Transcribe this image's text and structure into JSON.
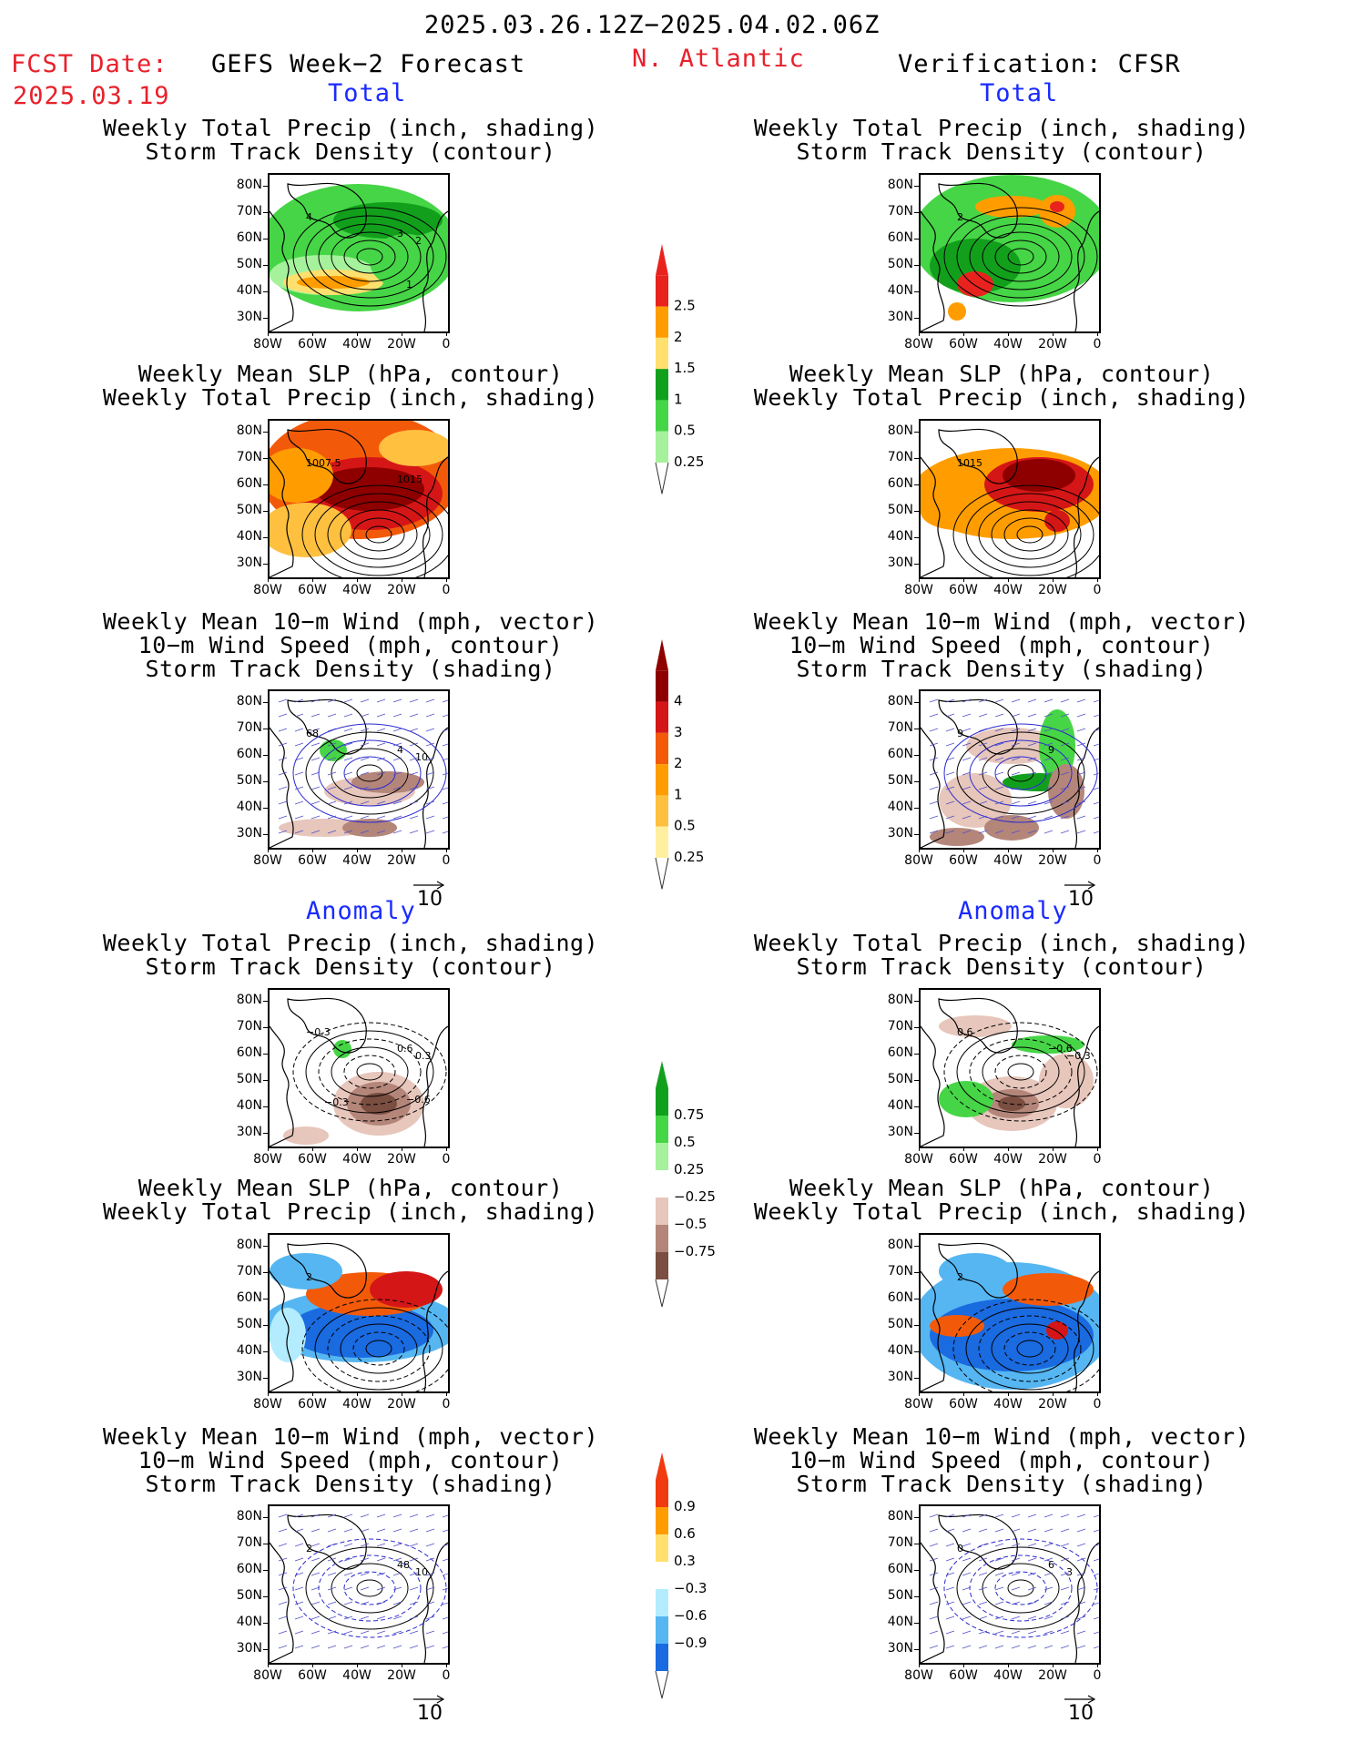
{
  "header": {
    "date_range": "2025.03.26.12Z−2025.04.02.06Z",
    "fcst_label": "FCST Date:",
    "fcst_date": "2025.03.19",
    "left_title": "GEFS Week−2 Forecast",
    "region": "N. Atlantic",
    "right_title": "Verification: CFSR"
  },
  "sections": {
    "total": "Total",
    "anomaly": "Anomaly"
  },
  "titles": {
    "precip_track": [
      "Weekly Total Precip (inch, shading)",
      "Storm Track Density (contour)"
    ],
    "slp_precip": [
      "Weekly Mean SLP (hPa, contour)",
      "Weekly Total Precip (inch, shading)"
    ],
    "wind_track": [
      "Weekly Mean 10−m Wind (mph, vector)",
      "10−m Wind Speed (mph, contour)",
      "Storm Track Density (shading)"
    ]
  },
  "axes": {
    "lat_ticks": [
      "80N",
      "70N",
      "60N",
      "50N",
      "40N",
      "30N"
    ],
    "lon_ticks": [
      "80W",
      "60W",
      "40W",
      "20W",
      "0"
    ]
  },
  "vector_ref": "10",
  "colorbars": {
    "precip_total": {
      "labels": [
        "2.5",
        "2",
        "1.5",
        "1",
        "0.5",
        "0.25"
      ],
      "colors": [
        "#e8231e",
        "#ff9d00",
        "#ffe06e",
        "#12a01c",
        "#46d546",
        "#a6f29c"
      ]
    },
    "track_total": {
      "labels": [
        "4",
        "3",
        "2",
        "1",
        "0.5",
        "0.25"
      ],
      "colors": [
        "#8e0000",
        "#d51616",
        "#f25a0a",
        "#ff9d00",
        "#ffc040",
        "#fff0a0"
      ]
    },
    "precip_anom": {
      "labels": [
        "0.75",
        "0.5",
        "0.25",
        "−0.25",
        "−0.5",
        "−0.75"
      ],
      "colors": [
        "#12a01c",
        "#46d546",
        "#a6f29c",
        "#ffffff",
        "#e7c6bb",
        "#b4867a",
        "#7a4e40"
      ]
    },
    "track_anom": {
      "labels": [
        "0.9",
        "0.6",
        "0.3",
        "−0.3",
        "−0.6",
        "−0.9"
      ],
      "colors": [
        "#f23a10",
        "#ff9d00",
        "#ffe06e",
        "#ffffff",
        "#b3ecff",
        "#55b6f2",
        "#1a6ae0"
      ]
    }
  },
  "contour_labels": {
    "p1": [
      "4",
      "3",
      "2",
      "1"
    ],
    "p2": [
      "2"
    ],
    "p3": [
      "1007.5",
      "1015"
    ],
    "p4": [
      "1015"
    ],
    "p5": [
      "68",
      "4",
      "10"
    ],
    "p6": [
      "9",
      "9"
    ],
    "p7": [
      "−0.3",
      "0.6",
      "0.3",
      "−0.6",
      "−0.3"
    ],
    "p8": [
      "0.6",
      "−0.6",
      "−0.3"
    ],
    "p9": [
      "2"
    ],
    "p10": [
      "2"
    ],
    "p11": [
      "2",
      "48",
      "10"
    ],
    "p12": [
      "0",
      "6",
      "3"
    ]
  }
}
